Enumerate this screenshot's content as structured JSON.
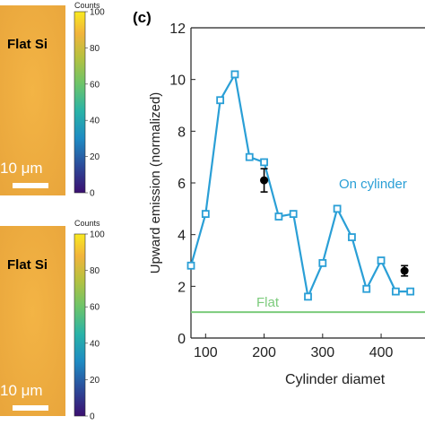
{
  "panel_label": "(c)",
  "maps": [
    {
      "label": "Flat Si",
      "scalebar_label": "10 μm",
      "colorbar": {
        "title": "Counts",
        "ticks": [
          "100",
          "80",
          "60",
          "40",
          "20",
          "0"
        ]
      }
    },
    {
      "label": "Flat Si",
      "scalebar_label": "10 μm",
      "colorbar": {
        "title": "Counts",
        "ticks": [
          "100",
          "80",
          "60",
          "40",
          "20",
          "0"
        ]
      }
    }
  ],
  "colors": {
    "map_fill": "#f0b040",
    "series_line": "#2a9fd6",
    "flat_line": "#7ccb7c",
    "measured": "#000000"
  },
  "chart_data": {
    "type": "line",
    "xlabel": "Cylinder diamet",
    "ylabel": "Upward emission (normalized)",
    "xlim": [
      75,
      475
    ],
    "ylim": [
      0,
      12
    ],
    "xticks": [
      100,
      200,
      300,
      400
    ],
    "yticks": [
      0,
      2,
      4,
      6,
      8,
      10,
      12
    ],
    "series": [
      {
        "name": "On cylinder",
        "marker": "square",
        "x": [
          75,
          100,
          125,
          150,
          175,
          200,
          225,
          250,
          275,
          300,
          325,
          350,
          375,
          400,
          425,
          450
        ],
        "y": [
          2.8,
          4.8,
          9.2,
          10.2,
          7.0,
          6.8,
          4.7,
          4.8,
          1.6,
          2.9,
          5.0,
          3.9,
          1.9,
          3.0,
          1.8,
          1.8
        ]
      },
      {
        "name": "Flat",
        "style": "hline",
        "y": 1.0
      },
      {
        "name": "",
        "marker": "circle",
        "x": [
          200,
          440
        ],
        "y": [
          6.1,
          2.6
        ],
        "err": [
          0.45,
          0.2
        ]
      }
    ]
  }
}
